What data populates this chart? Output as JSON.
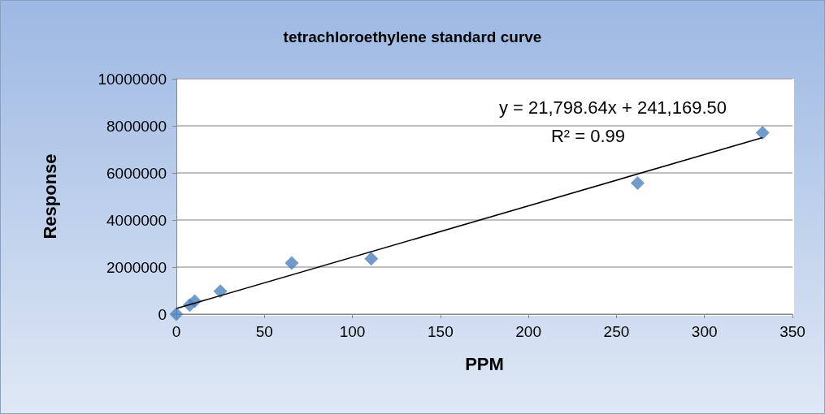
{
  "chart_data": {
    "type": "scatter",
    "title": "tetrachloroethylene standard curve",
    "xlabel": "PPM",
    "ylabel": "Response",
    "annotations": [
      "y = 21,798.64x + 241,169.50",
      "R² = 0.99"
    ],
    "series": [
      {
        "color": "#4f81bd",
        "marker": "diamond",
        "x": [
          0,
          7.6,
          10.4,
          25,
          65.5,
          110.7,
          262,
          333
        ],
        "values": [
          0,
          390000,
          550000,
          970000,
          2170000,
          2350000,
          5570000,
          7710000
        ]
      },
      {
        "type": "line",
        "color": "#000000",
        "line_style": "solid",
        "marker": "none",
        "x": [
          0,
          333
        ],
        "values": [
          240000,
          7500000
        ]
      }
    ],
    "xlim": [
      0,
      350
    ],
    "xticks": [
      0,
      50,
      100,
      150,
      200,
      250,
      300,
      350
    ],
    "ylim": [
      0,
      10000000
    ],
    "yticks": [
      0,
      2000000,
      4000000,
      6000000,
      8000000,
      10000000
    ],
    "grid": "y"
  }
}
